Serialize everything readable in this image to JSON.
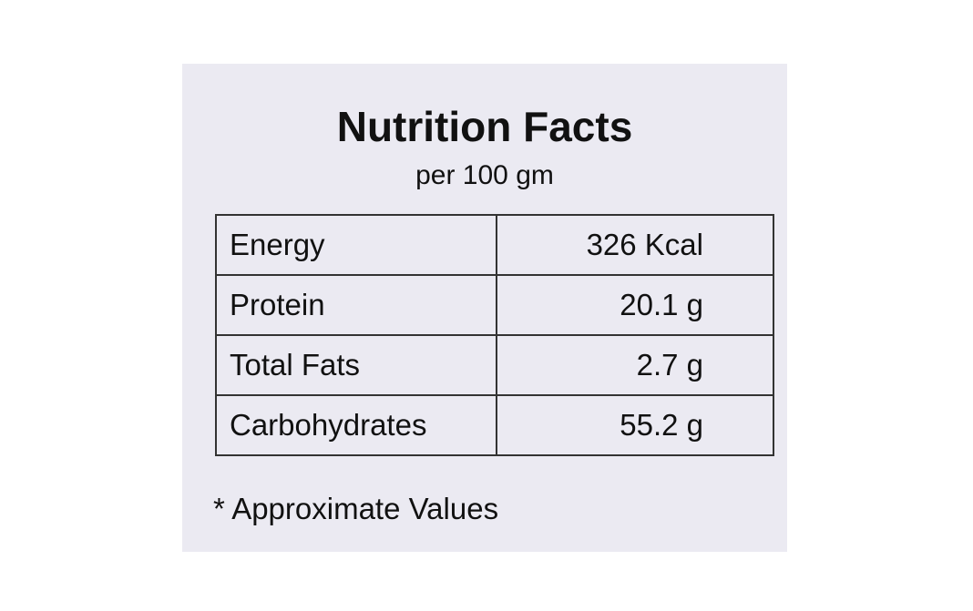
{
  "header": {
    "title": "Nutrition Facts",
    "subtitle": "per 100 gm"
  },
  "table": {
    "rows": [
      [
        "Energy",
        "326 Kcal"
      ],
      [
        "Protein",
        "20.1 g"
      ],
      [
        "Total Fats",
        "2.7 g"
      ],
      [
        "Carbohydrates",
        "55.2 g"
      ]
    ]
  },
  "footnote": "* Approximate Values"
}
